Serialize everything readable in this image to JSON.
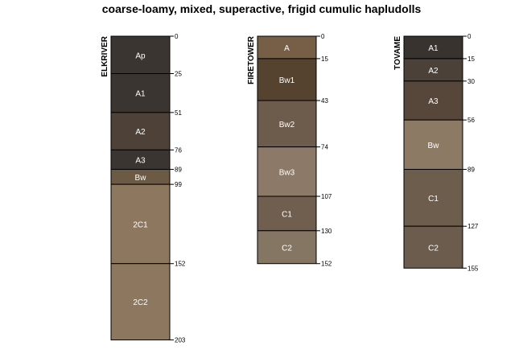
{
  "chart_data": {
    "type": "soil-profile",
    "title": "coarse-loamy, mixed, superactive, frigid cumulic hapludolls",
    "depth_units": "cm",
    "profiles": [
      {
        "name": "ELKRIVER",
        "horizons": [
          {
            "name": "Ap",
            "top": 0,
            "bottom": 25,
            "color": "#3b3532"
          },
          {
            "name": "A1",
            "top": 25,
            "bottom": 51,
            "color": "#3b3532"
          },
          {
            "name": "A2",
            "top": 51,
            "bottom": 76,
            "color": "#4e4238"
          },
          {
            "name": "A3",
            "top": 76,
            "bottom": 89,
            "color": "#3b3532"
          },
          {
            "name": "Bw",
            "top": 89,
            "bottom": 99,
            "color": "#6d5a45"
          },
          {
            "name": "2C1",
            "top": 99,
            "bottom": 152,
            "color": "#8d775f"
          },
          {
            "name": "2C2",
            "top": 152,
            "bottom": 203,
            "color": "#8d775f"
          }
        ],
        "depth_ticks": [
          0,
          25,
          51,
          76,
          89,
          99,
          152,
          203
        ]
      },
      {
        "name": "FIRETOWER",
        "horizons": [
          {
            "name": "A",
            "top": 0,
            "bottom": 15,
            "color": "#775f47"
          },
          {
            "name": "Bw1",
            "top": 15,
            "bottom": 43,
            "color": "#55432f"
          },
          {
            "name": "Bw2",
            "top": 43,
            "bottom": 74,
            "color": "#6d5c4c"
          },
          {
            "name": "Bw3",
            "top": 74,
            "bottom": 107,
            "color": "#8c7967"
          },
          {
            "name": "C1",
            "top": 107,
            "bottom": 130,
            "color": "#705f4f"
          },
          {
            "name": "C2",
            "top": 130,
            "bottom": 152,
            "color": "#857664"
          }
        ],
        "depth_ticks": [
          0,
          15,
          43,
          74,
          107,
          130,
          152
        ]
      },
      {
        "name": "TOVAME",
        "horizons": [
          {
            "name": "A1",
            "top": 0,
            "bottom": 15,
            "color": "#393330"
          },
          {
            "name": "A2",
            "top": 15,
            "bottom": 30,
            "color": "#4b4139"
          },
          {
            "name": "A3",
            "top": 30,
            "bottom": 56,
            "color": "#56473a"
          },
          {
            "name": "Bw",
            "top": 56,
            "bottom": 89,
            "color": "#8d7a65"
          },
          {
            "name": "C1",
            "top": 89,
            "bottom": 127,
            "color": "#6d5d4d"
          },
          {
            "name": "C2",
            "top": 127,
            "bottom": 155,
            "color": "#6b5c4d"
          }
        ],
        "depth_ticks": [
          0,
          15,
          30,
          56,
          89,
          127,
          155
        ]
      }
    ]
  }
}
